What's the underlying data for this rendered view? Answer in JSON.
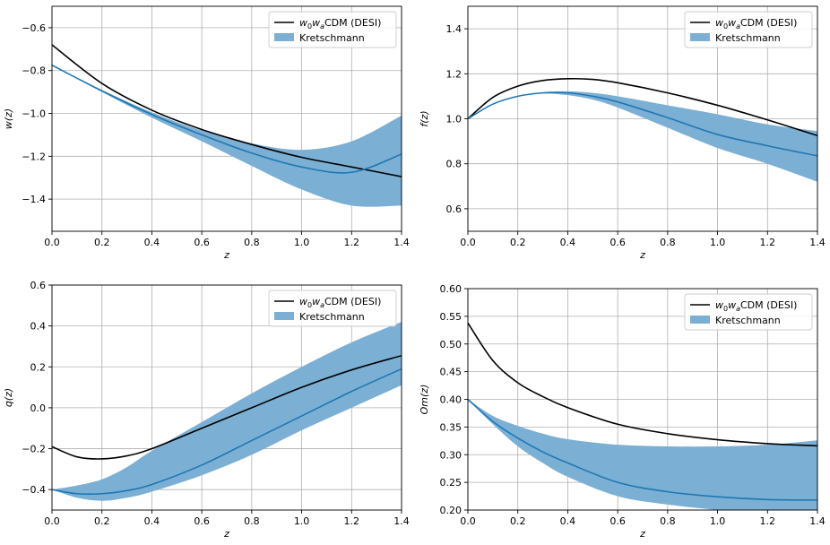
{
  "chart_data": [
    {
      "type": "line",
      "ylabel": "w(z)",
      "xlabel": "z",
      "xlim": [
        0,
        1.4
      ],
      "ylim": [
        -1.55,
        -0.5
      ],
      "xticks": [
        "0.0",
        "0.2",
        "0.4",
        "0.6",
        "0.8",
        "1.0",
        "1.2",
        "1.4"
      ],
      "yticks": [
        "−0.6",
        "−0.8",
        "−1.0",
        "−1.2",
        "−1.4"
      ],
      "grid": true,
      "legend_position": "top-right",
      "legend": {
        "line_label_html": "<tspan font-style=\"italic\">w</tspan><tspan font-size=\"8\" dy=\"3\">0</tspan><tspan font-style=\"italic\" dy=\"-3\">w</tspan><tspan font-size=\"8\" font-style=\"italic\" dy=\"3\">a</tspan><tspan dy=\"-3\">CDM (DESI)</tspan>",
        "line_label_text": "w0waCDM (DESI)",
        "band_label": "Kretschmann"
      },
      "series": [
        {
          "name": "w0waCDM (DESI)",
          "kind": "line",
          "color": "#000000",
          "x": [
            0,
            0.2,
            0.4,
            0.6,
            0.8,
            1.0,
            1.2,
            1.4
          ],
          "y": [
            -0.68,
            -0.86,
            -0.985,
            -1.075,
            -1.145,
            -1.205,
            -1.25,
            -1.295
          ]
        },
        {
          "name": "Kretschmann",
          "kind": "mean",
          "color": "#1f77b4",
          "x": [
            0,
            0.2,
            0.4,
            0.6,
            0.8,
            1.0,
            1.2,
            1.4
          ],
          "y": [
            -0.775,
            -0.895,
            -1.005,
            -1.1,
            -1.185,
            -1.25,
            -1.275,
            -1.19
          ]
        },
        {
          "name": "Kretschmann",
          "kind": "band",
          "color": "#7bafd4",
          "x": [
            0,
            0.2,
            0.4,
            0.6,
            0.8,
            1.0,
            1.2,
            1.4
          ],
          "lower": [
            -0.775,
            -0.9,
            -1.02,
            -1.13,
            -1.245,
            -1.355,
            -1.43,
            -1.43
          ],
          "upper": [
            -0.775,
            -0.89,
            -0.995,
            -1.08,
            -1.14,
            -1.17,
            -1.13,
            -1.01
          ]
        }
      ]
    },
    {
      "type": "line",
      "ylabel": "f(z)",
      "xlabel": "z",
      "xlim": [
        0,
        1.4
      ],
      "ylim": [
        0.5,
        1.5
      ],
      "xticks": [
        "0.0",
        "0.2",
        "0.4",
        "0.6",
        "0.8",
        "1.0",
        "1.2",
        "1.4"
      ],
      "yticks": [
        "1.4",
        "1.2",
        "1.0",
        "0.8",
        "0.6"
      ],
      "grid": true,
      "legend_position": "top-right",
      "legend": {
        "line_label_html": "<tspan font-style=\"italic\">w</tspan><tspan font-size=\"8\" dy=\"3\">0</tspan><tspan font-style=\"italic\" dy=\"-3\">w</tspan><tspan font-size=\"8\" font-style=\"italic\" dy=\"3\">a</tspan><tspan dy=\"-3\">CDM (DESI)</tspan>",
        "line_label_text": "w0waCDM (DESI)",
        "band_label": "Kretschmann"
      },
      "series": [
        {
          "name": "w0waCDM (DESI)",
          "kind": "line",
          "color": "#000000",
          "x": [
            0,
            0.1,
            0.2,
            0.3,
            0.4,
            0.5,
            0.6,
            0.8,
            1.0,
            1.2,
            1.4
          ],
          "y": [
            1.0,
            1.095,
            1.145,
            1.17,
            1.178,
            1.175,
            1.16,
            1.115,
            1.06,
            0.995,
            0.925
          ]
        },
        {
          "name": "Kretschmann",
          "kind": "mean",
          "color": "#1f77b4",
          "x": [
            0,
            0.1,
            0.2,
            0.3,
            0.4,
            0.5,
            0.6,
            0.8,
            1.0,
            1.2,
            1.4
          ],
          "y": [
            1.0,
            1.065,
            1.1,
            1.115,
            1.115,
            1.1,
            1.075,
            1.005,
            0.93,
            0.88,
            0.835
          ]
        },
        {
          "name": "Kretschmann",
          "kind": "band",
          "color": "#7bafd4",
          "x": [
            0,
            0.1,
            0.2,
            0.3,
            0.4,
            0.5,
            0.6,
            0.8,
            1.0,
            1.2,
            1.4
          ],
          "lower": [
            1.0,
            1.065,
            1.1,
            1.112,
            1.105,
            1.085,
            1.05,
            0.96,
            0.87,
            0.8,
            0.72
          ],
          "upper": [
            1.0,
            1.065,
            1.1,
            1.118,
            1.122,
            1.115,
            1.1,
            1.06,
            1.02,
            0.975,
            0.945
          ]
        }
      ]
    },
    {
      "type": "line",
      "ylabel": "q(z)",
      "xlabel": "z",
      "xlim": [
        0,
        1.4
      ],
      "ylim": [
        -0.5,
        0.6
      ],
      "xticks": [
        "0.0",
        "0.2",
        "0.4",
        "0.6",
        "0.8",
        "1.0",
        "1.2",
        "1.4"
      ],
      "yticks": [
        "0.6",
        "0.4",
        "0.2",
        "0.0",
        "−0.2",
        "−0.4"
      ],
      "grid": true,
      "legend_position": "top-right",
      "legend": {
        "line_label_html": "<tspan font-style=\"italic\">w</tspan><tspan font-size=\"8\" dy=\"3\">0</tspan><tspan font-style=\"italic\" dy=\"-3\">w</tspan><tspan font-size=\"8\" font-style=\"italic\" dy=\"3\">a</tspan><tspan dy=\"-3\">CDM (DESI)</tspan>",
        "line_label_text": "w0waCDM (DESI)",
        "band_label": "Kretschmann"
      },
      "series": [
        {
          "name": "w0waCDM (DESI)",
          "kind": "line",
          "color": "#000000",
          "x": [
            0,
            0.1,
            0.2,
            0.3,
            0.4,
            0.6,
            0.8,
            1.0,
            1.2,
            1.4
          ],
          "y": [
            -0.19,
            -0.24,
            -0.25,
            -0.235,
            -0.2,
            -0.1,
            0.0,
            0.1,
            0.185,
            0.255
          ]
        },
        {
          "name": "Kretschmann",
          "kind": "mean",
          "color": "#1f77b4",
          "x": [
            0,
            0.1,
            0.2,
            0.3,
            0.4,
            0.6,
            0.8,
            1.0,
            1.2,
            1.4
          ],
          "y": [
            -0.4,
            -0.42,
            -0.42,
            -0.405,
            -0.375,
            -0.28,
            -0.16,
            -0.04,
            0.08,
            0.19
          ]
        },
        {
          "name": "Kretschmann",
          "kind": "band",
          "color": "#7bafd4",
          "x": [
            0,
            0.1,
            0.2,
            0.3,
            0.4,
            0.6,
            0.8,
            1.0,
            1.2,
            1.4
          ],
          "lower": [
            -0.4,
            -0.44,
            -0.455,
            -0.44,
            -0.41,
            -0.33,
            -0.23,
            -0.11,
            0.0,
            0.11
          ],
          "upper": [
            -0.4,
            -0.38,
            -0.35,
            -0.29,
            -0.21,
            -0.07,
            0.07,
            0.2,
            0.32,
            0.42
          ]
        }
      ]
    },
    {
      "type": "line",
      "ylabel": "Om(z)",
      "xlabel": "z",
      "xlim": [
        0,
        1.4
      ],
      "ylim": [
        0.2,
        0.6
      ],
      "xticks": [
        "0.0",
        "0.2",
        "0.4",
        "0.6",
        "0.8",
        "1.0",
        "1.2",
        "1.4"
      ],
      "yticks": [
        "0.60",
        "0.55",
        "0.50",
        "0.45",
        "0.40",
        "0.35",
        "0.30",
        "0.25",
        "0.20"
      ],
      "grid": true,
      "legend_position": "top-right",
      "legend": {
        "line_label_html": "<tspan font-style=\"italic\">w</tspan><tspan font-size=\"8\" dy=\"3\">0</tspan><tspan font-style=\"italic\" dy=\"-3\">w</tspan><tspan font-size=\"8\" font-style=\"italic\" dy=\"3\">a</tspan><tspan dy=\"-3\">CDM (DESI)</tspan>",
        "line_label_text": "w0waCDM (DESI)",
        "band_label": "Kretschmann"
      },
      "series": [
        {
          "name": "w0waCDM (DESI)",
          "kind": "line",
          "color": "#000000",
          "x": [
            0,
            0.1,
            0.2,
            0.3,
            0.4,
            0.6,
            0.8,
            1.0,
            1.2,
            1.4
          ],
          "y": [
            0.538,
            0.47,
            0.43,
            0.405,
            0.385,
            0.355,
            0.338,
            0.327,
            0.32,
            0.316
          ]
        },
        {
          "name": "Kretschmann",
          "kind": "mean",
          "color": "#1f77b4",
          "x": [
            0,
            0.1,
            0.2,
            0.3,
            0.4,
            0.6,
            0.8,
            1.0,
            1.2,
            1.4
          ],
          "y": [
            0.4,
            0.36,
            0.33,
            0.305,
            0.285,
            0.25,
            0.233,
            0.224,
            0.219,
            0.218
          ]
        },
        {
          "name": "Kretschmann",
          "kind": "band",
          "color": "#7bafd4",
          "x": [
            0,
            0.1,
            0.2,
            0.3,
            0.4,
            0.6,
            0.8,
            1.0,
            1.2,
            1.4
          ],
          "lower": [
            0.4,
            0.355,
            0.315,
            0.285,
            0.26,
            0.225,
            0.21,
            0.2,
            0.19,
            0.185
          ],
          "upper": [
            0.4,
            0.37,
            0.352,
            0.338,
            0.328,
            0.318,
            0.315,
            0.315,
            0.318,
            0.326
          ]
        }
      ]
    }
  ]
}
